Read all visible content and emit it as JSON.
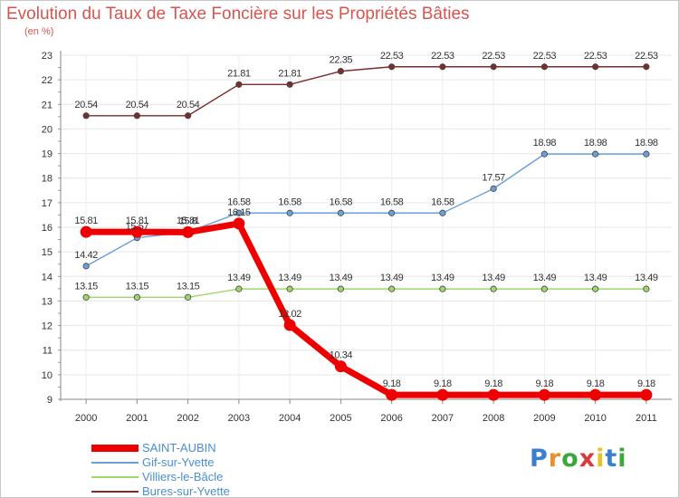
{
  "header": {
    "title": "Evolution du Taux de Taxe Foncière sur les Propriétés Bâties",
    "subtitle": "(en %)"
  },
  "logo": {
    "letters": [
      "P",
      "r",
      "o",
      "x",
      "i",
      "t",
      "i"
    ],
    "colors": [
      "#3a7fd0",
      "#e8902a",
      "#3ba83b",
      "#d93a3a",
      "#e8c22a",
      "#3a7fd0",
      "#3ba83b"
    ]
  },
  "chart_data": {
    "type": "line",
    "title": "Evolution du Taux de Taxe Foncière sur les Propriétés Bâties",
    "ylabel": "(en %)",
    "xlabel": "",
    "ylim": [
      9,
      23
    ],
    "yticks": [
      9,
      10,
      11,
      12,
      13,
      14,
      15,
      16,
      17,
      18,
      19,
      20,
      21,
      22,
      23
    ],
    "grid": true,
    "categories": [
      "2000",
      "2001",
      "2002",
      "2003",
      "2004",
      "2005",
      "2006",
      "2007",
      "2008",
      "2009",
      "2010",
      "2011"
    ],
    "series": [
      {
        "name": "SAINT-AUBIN",
        "color": "#ee0000",
        "bold": true,
        "values": [
          15.81,
          15.81,
          15.8,
          16.15,
          12.02,
          10.34,
          9.18,
          9.18,
          9.18,
          9.18,
          9.18,
          9.18
        ],
        "labels": [
          "15.81",
          "15.81",
          "15.8",
          "16.15",
          "12.02",
          "10.34",
          "9.18",
          "9.18",
          "9.18",
          "9.18",
          "9.18",
          "9.18"
        ]
      },
      {
        "name": "Gif-sur-Yvette",
        "color": "#6aa0d8",
        "bold": false,
        "values": [
          14.42,
          15.57,
          15.81,
          16.58,
          16.58,
          16.58,
          16.58,
          16.58,
          17.57,
          18.98,
          18.98,
          18.98
        ],
        "labels": [
          "14.42",
          "15.57",
          "15.81",
          "16.58",
          "16.58",
          "16.58",
          "16.58",
          "16.58",
          "17.57",
          "18.98",
          "18.98",
          "18.98"
        ]
      },
      {
        "name": "Villiers-le-Bâcle",
        "color": "#9fd66a",
        "bold": false,
        "values": [
          13.15,
          13.15,
          13.15,
          13.49,
          13.49,
          13.49,
          13.49,
          13.49,
          13.49,
          13.49,
          13.49,
          13.49
        ],
        "labels": [
          "13.15",
          "13.15",
          "13.15",
          "13.49",
          "13.49",
          "13.49",
          "13.49",
          "13.49",
          "13.49",
          "13.49",
          "13.49",
          "13.49"
        ]
      },
      {
        "name": "Bures-sur-Yvette",
        "color": "#7a2d2d",
        "bold": false,
        "values": [
          20.54,
          20.54,
          20.54,
          21.81,
          21.81,
          22.35,
          22.53,
          22.53,
          22.53,
          22.53,
          22.53,
          22.53
        ],
        "labels": [
          "20.54",
          "20.54",
          "20.54",
          "21.81",
          "21.81",
          "22.35",
          "22.53",
          "22.53",
          "22.53",
          "22.53",
          "22.53",
          "22.53"
        ]
      }
    ]
  }
}
